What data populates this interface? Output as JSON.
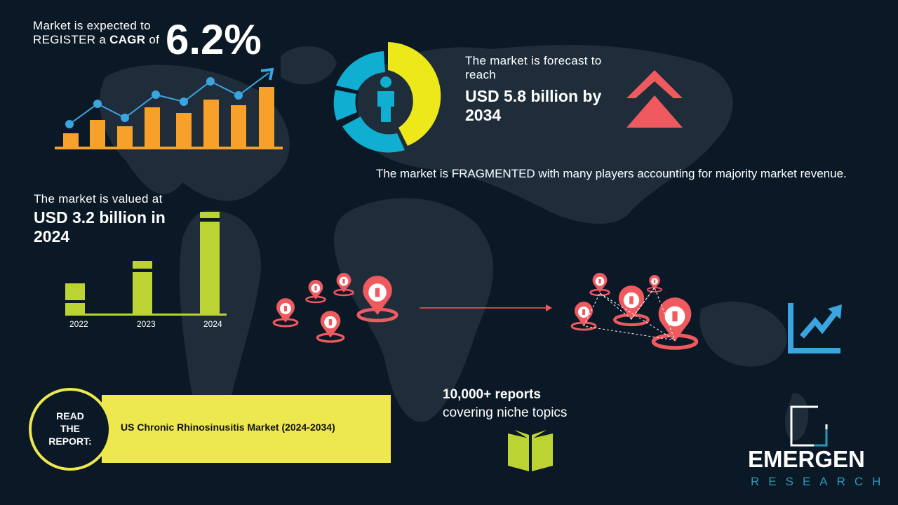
{
  "cagr": {
    "line1": "Market is expected to",
    "line2_prefix": "REGISTER a",
    "line2_bold": "CAGR",
    "line2_suffix": "of",
    "value": "6.2%"
  },
  "forecast": {
    "intro": "The market is forecast to reach",
    "value": "USD 5.8 billion by 2034"
  },
  "fragmented": "The market is FRAGMENTED with many players accounting for majority market revenue.",
  "valued": {
    "intro": "The market is valued at",
    "value": "USD 3.2 billion in 2024"
  },
  "years": [
    "2022",
    "2023",
    "2024"
  ],
  "reports": {
    "line1": "10,000+ reports",
    "line2": "covering niche topics"
  },
  "read_report": {
    "label_lines": [
      "READ",
      "THE",
      "REPORT:"
    ],
    "title": "US Chronic Rhinosinusitis Market (2024-2034)"
  },
  "logo": {
    "name": "EMERGEN",
    "sub": "RESEARCH"
  },
  "colors": {
    "background": "#0b1826",
    "orange": "#f7a02a",
    "blue": "#3ba5e0",
    "yellow": "#ece81a",
    "teal": "#10aed0",
    "red": "#ef5a5f",
    "green": "#bcd334",
    "banner": "#eee84f"
  }
}
